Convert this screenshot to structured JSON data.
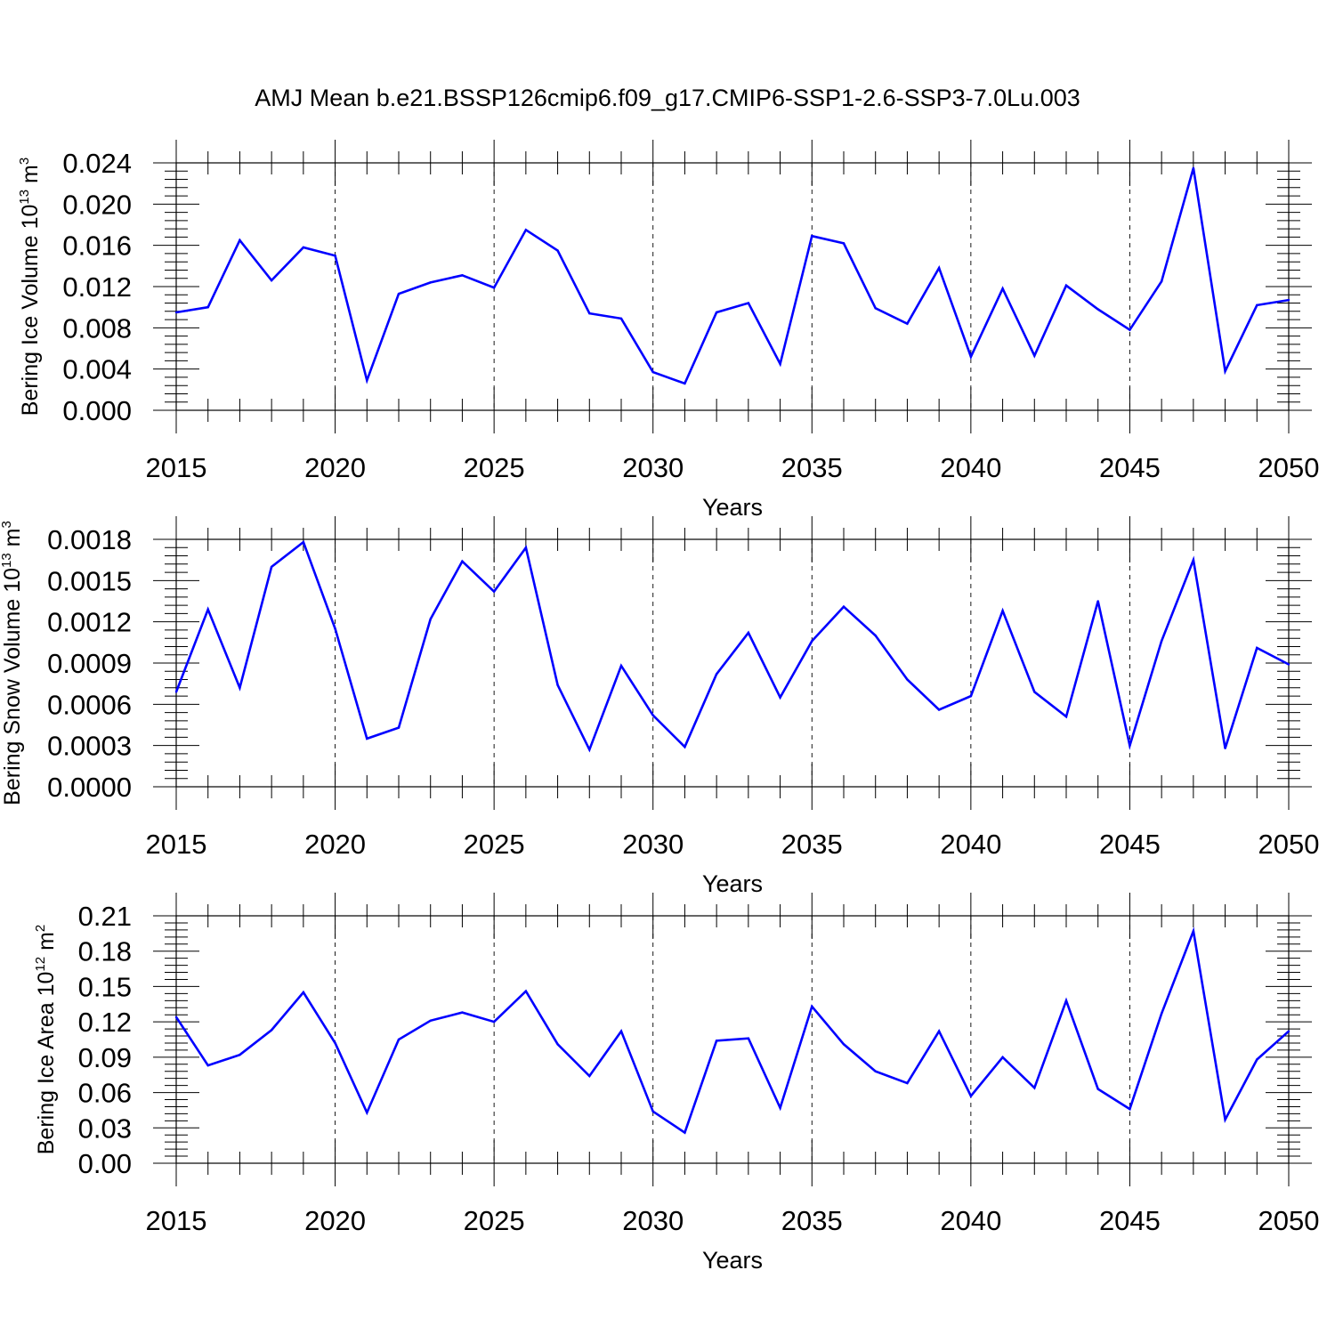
{
  "figure_title": "AMJ Mean b.e21.BSSP126cmip6.f09_g17.CMIP6-SSP1-2.6-SSP3-7.0Lu.003",
  "line_color": "#0000ff",
  "chart_data": [
    {
      "type": "line",
      "xlabel": "Years",
      "ylabel": "Bering Ice Volume 10",
      "ylabel_exp": "13",
      "ylabel_unit": " m",
      "ylabel_unit_exp": "3",
      "xlim": [
        2015,
        2050
      ],
      "ylim": [
        0,
        0.024
      ],
      "xticks": [
        2015,
        2020,
        2025,
        2030,
        2035,
        2040,
        2045,
        2050
      ],
      "xtick_labels": [
        "2015",
        "2020",
        "2025",
        "2030",
        "2035",
        "2040",
        "2045",
        "2050"
      ],
      "yticks": [
        0,
        0.004,
        0.008,
        0.012,
        0.016,
        0.02,
        0.024
      ],
      "ytick_labels": [
        "0.000",
        "0.004",
        "0.008",
        "0.012",
        "0.016",
        "0.020",
        "0.024"
      ],
      "grid": "vertical dashed at major x ticks",
      "x": [
        2015,
        2016,
        2017,
        2018,
        2019,
        2020,
        2021,
        2022,
        2023,
        2024,
        2025,
        2026,
        2027,
        2028,
        2029,
        2030,
        2031,
        2032,
        2033,
        2034,
        2035,
        2036,
        2037,
        2038,
        2039,
        2040,
        2041,
        2042,
        2043,
        2044,
        2045,
        2046,
        2047,
        2048,
        2049,
        2050
      ],
      "y": [
        0.0095,
        0.01,
        0.0165,
        0.0126,
        0.0158,
        0.015,
        0.0029,
        0.0113,
        0.0124,
        0.0131,
        0.0119,
        0.0175,
        0.0155,
        0.0094,
        0.0089,
        0.0037,
        0.0026,
        0.0095,
        0.0104,
        0.0045,
        0.0169,
        0.0162,
        0.0099,
        0.0084,
        0.0138,
        0.0052,
        0.0118,
        0.0053,
        0.0121,
        0.0098,
        0.0078,
        0.0125,
        0.0235,
        0.0038,
        0.0102,
        0.0107
      ]
    },
    {
      "type": "line",
      "xlabel": "Years",
      "ylabel": "Bering Snow Volume 10",
      "ylabel_exp": "13",
      "ylabel_unit": " m",
      "ylabel_unit_exp": "3",
      "xlim": [
        2015,
        2050
      ],
      "ylim": [
        0,
        0.0018
      ],
      "xticks": [
        2015,
        2020,
        2025,
        2030,
        2035,
        2040,
        2045,
        2050
      ],
      "xtick_labels": [
        "2015",
        "2020",
        "2025",
        "2030",
        "2035",
        "2040",
        "2045",
        "2050"
      ],
      "yticks": [
        0,
        0.0003,
        0.0006,
        0.0009,
        0.0012,
        0.0015,
        0.0018
      ],
      "ytick_labels": [
        "0.0000",
        "0.0003",
        "0.0006",
        "0.0009",
        "0.0012",
        "0.0015",
        "0.0018"
      ],
      "grid": "vertical dashed at major x ticks",
      "x": [
        2015,
        2016,
        2017,
        2018,
        2019,
        2020,
        2021,
        2022,
        2023,
        2024,
        2025,
        2026,
        2027,
        2028,
        2029,
        2030,
        2031,
        2032,
        2033,
        2034,
        2035,
        2036,
        2037,
        2038,
        2039,
        2040,
        2041,
        2042,
        2043,
        2044,
        2045,
        2046,
        2047,
        2048,
        2049,
        2050
      ],
      "y": [
        0.00069,
        0.00129,
        0.00072,
        0.0016,
        0.00178,
        0.00115,
        0.00035,
        0.00043,
        0.00122,
        0.00164,
        0.00142,
        0.00174,
        0.00074,
        0.00027,
        0.00088,
        0.00052,
        0.00029,
        0.00082,
        0.00112,
        0.00065,
        0.00106,
        0.00131,
        0.0011,
        0.00078,
        0.00056,
        0.00066,
        0.00128,
        0.00069,
        0.00051,
        0.00135,
        0.0003,
        0.00106,
        0.00165,
        0.00028,
        0.00101,
        0.00089
      ]
    },
    {
      "type": "line",
      "xlabel": "Years",
      "ylabel": "Bering Ice Area 10",
      "ylabel_exp": "12",
      "ylabel_unit": " m",
      "ylabel_unit_exp": "2",
      "xlim": [
        2015,
        2050
      ],
      "ylim": [
        0,
        0.21
      ],
      "xticks": [
        2015,
        2020,
        2025,
        2030,
        2035,
        2040,
        2045,
        2050
      ],
      "xtick_labels": [
        "2015",
        "2020",
        "2025",
        "2030",
        "2035",
        "2040",
        "2045",
        "2050"
      ],
      "yticks": [
        0,
        0.03,
        0.06,
        0.09,
        0.12,
        0.15,
        0.18,
        0.21
      ],
      "ytick_labels": [
        "0.00",
        "0.03",
        "0.06",
        "0.09",
        "0.12",
        "0.15",
        "0.18",
        "0.21"
      ],
      "grid": "vertical dashed at major x ticks",
      "x": [
        2015,
        2016,
        2017,
        2018,
        2019,
        2020,
        2021,
        2022,
        2023,
        2024,
        2025,
        2026,
        2027,
        2028,
        2029,
        2030,
        2031,
        2032,
        2033,
        2034,
        2035,
        2036,
        2037,
        2038,
        2039,
        2040,
        2041,
        2042,
        2043,
        2044,
        2045,
        2046,
        2047,
        2048,
        2049,
        2050
      ],
      "y": [
        0.124,
        0.083,
        0.092,
        0.113,
        0.145,
        0.102,
        0.043,
        0.105,
        0.121,
        0.128,
        0.12,
        0.146,
        0.101,
        0.074,
        0.112,
        0.044,
        0.026,
        0.104,
        0.106,
        0.047,
        0.133,
        0.101,
        0.078,
        0.068,
        0.112,
        0.057,
        0.09,
        0.064,
        0.138,
        0.063,
        0.046,
        0.127,
        0.197,
        0.037,
        0.088,
        0.112
      ]
    }
  ]
}
